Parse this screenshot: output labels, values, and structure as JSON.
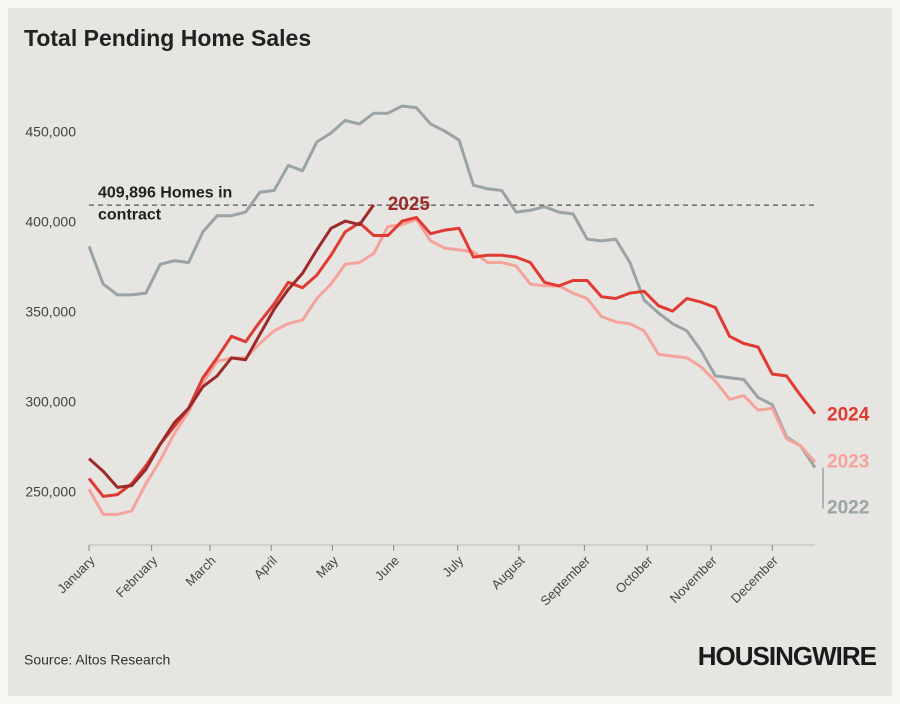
{
  "chart_data": {
    "type": "line",
    "title": "Total Pending Home Sales",
    "source": "Source: Altos Research",
    "brand": "HOUSINGWIRE",
    "reference_line": {
      "value": 409896,
      "label": [
        "409,896 Homes in",
        "contract"
      ]
    },
    "x": [
      0,
      1,
      2,
      3,
      4,
      5,
      6,
      7,
      8,
      9,
      10,
      11,
      12,
      13,
      14,
      15,
      16,
      17,
      18,
      19,
      20,
      21,
      22,
      23,
      24,
      25,
      26,
      27,
      28,
      29,
      30,
      31,
      32,
      33,
      34,
      35,
      36,
      37,
      38,
      39,
      40,
      41,
      42,
      43,
      44,
      45,
      46,
      47,
      48,
      49,
      50,
      51
    ],
    "xlim": [
      0,
      51
    ],
    "xticks": [
      {
        "value": 0,
        "label": "January"
      },
      {
        "value": 4.4,
        "label": "February"
      },
      {
        "value": 8.5,
        "label": "March"
      },
      {
        "value": 12.8,
        "label": "April"
      },
      {
        "value": 17.1,
        "label": "May"
      },
      {
        "value": 21.4,
        "label": "June"
      },
      {
        "value": 25.9,
        "label": "July"
      },
      {
        "value": 30.2,
        "label": "August"
      },
      {
        "value": 34.8,
        "label": "September"
      },
      {
        "value": 39.2,
        "label": "October"
      },
      {
        "value": 43.7,
        "label": "November"
      },
      {
        "value": 48.0,
        "label": "December"
      }
    ],
    "ylim": [
      221000,
      485000
    ],
    "yticks": [
      {
        "value": 250000,
        "label": "250,000"
      },
      {
        "value": 300000,
        "label": "300,000"
      },
      {
        "value": 350000,
        "label": "350,000"
      },
      {
        "value": 400000,
        "label": "400,000"
      },
      {
        "value": 450000,
        "label": "450,000"
      }
    ],
    "series": [
      {
        "name": "2022",
        "color": "#9aa3a6",
        "values": [
          387000,
          366000,
          360000,
          360000,
          361000,
          377000,
          379000,
          378000,
          395000,
          404000,
          404000,
          406000,
          417000,
          418000,
          432000,
          429000,
          445000,
          450000,
          457000,
          455000,
          461000,
          461000,
          465000,
          464000,
          455000,
          451000,
          446000,
          421000,
          419000,
          418000,
          406000,
          407000,
          409000,
          406000,
          405000,
          391000,
          390000,
          391000,
          378000,
          357000,
          350000,
          344000,
          340000,
          329000,
          315000,
          314000,
          313000,
          303000,
          299000,
          281000,
          276000,
          264000
        ]
      },
      {
        "name": "2023",
        "color": "#f4a49c",
        "values": [
          252000,
          238000,
          238000,
          240000,
          255000,
          268000,
          283000,
          295000,
          311000,
          323000,
          325000,
          325000,
          333000,
          340000,
          344000,
          346000,
          358000,
          366000,
          377000,
          378000,
          383000,
          398000,
          399000,
          402000,
          390000,
          386000,
          385000,
          384000,
          378000,
          378000,
          376000,
          366000,
          365000,
          365000,
          361000,
          358000,
          348000,
          345000,
          344000,
          340000,
          327000,
          326000,
          325000,
          320000,
          312000,
          302000,
          304000,
          296000,
          297000,
          280000,
          276000,
          267000
        ]
      },
      {
        "name": "2024",
        "color": "#e03a33",
        "values": [
          258000,
          248000,
          249000,
          255000,
          265000,
          277000,
          287000,
          297000,
          314000,
          325000,
          337000,
          334000,
          345000,
          355000,
          367000,
          364000,
          371000,
          382000,
          395000,
          400000,
          393000,
          393000,
          401000,
          403000,
          394000,
          396000,
          397000,
          381000,
          382000,
          382000,
          381000,
          378000,
          367000,
          365000,
          368000,
          368000,
          359000,
          358000,
          361000,
          362000,
          354000,
          351000,
          358000,
          356000,
          353000,
          337000,
          333000,
          331000,
          316000,
          315000,
          304000,
          294000
        ]
      },
      {
        "name": "2025",
        "color": "#9b2a2a",
        "values": [
          269000,
          262000,
          253000,
          254000,
          263000,
          277000,
          289000,
          297000,
          309000,
          315000,
          325000,
          324000,
          338000,
          352000,
          363000,
          372000,
          385000,
          397000,
          401000,
          399000,
          410000,
          null,
          null,
          null,
          null,
          null,
          null,
          null,
          null,
          null,
          null,
          null,
          null,
          null,
          null,
          null,
          null,
          null,
          null,
          null,
          null,
          null,
          null,
          null,
          null,
          null,
          null,
          null,
          null,
          null,
          null,
          null
        ]
      }
    ]
  }
}
